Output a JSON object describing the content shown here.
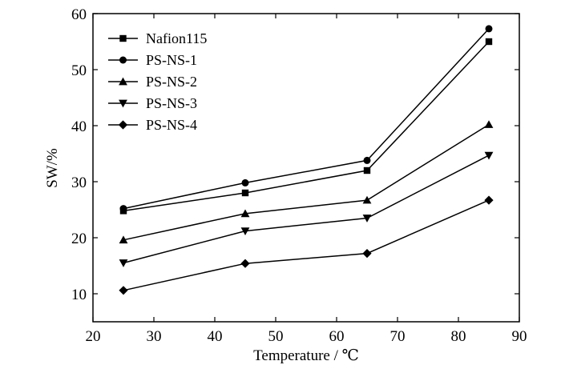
{
  "chart_data": {
    "type": "line",
    "xlabel": "Temperature / ℃",
    "ylabel": "SW/%",
    "xlim": [
      20,
      90
    ],
    "ylim": [
      5,
      60
    ],
    "xticks": [
      20,
      30,
      40,
      50,
      60,
      70,
      80,
      90
    ],
    "yticks": [
      10,
      20,
      30,
      40,
      50,
      60
    ],
    "x": [
      25,
      45,
      65,
      85
    ],
    "legend_position": "top-left",
    "series": [
      {
        "name": "Nafion115",
        "marker": "square",
        "values": [
          24.8,
          28.0,
          32.0,
          55.0
        ]
      },
      {
        "name": "PS-NS-1",
        "marker": "circle",
        "values": [
          25.2,
          29.8,
          33.8,
          57.3
        ]
      },
      {
        "name": "PS-NS-2",
        "marker": "triangle-up",
        "values": [
          19.6,
          24.3,
          26.7,
          40.2
        ]
      },
      {
        "name": "PS-NS-3",
        "marker": "triangle-down",
        "values": [
          15.5,
          21.2,
          23.5,
          34.7
        ]
      },
      {
        "name": "PS-NS-4",
        "marker": "diamond",
        "values": [
          10.6,
          15.4,
          17.2,
          26.7
        ]
      }
    ]
  }
}
